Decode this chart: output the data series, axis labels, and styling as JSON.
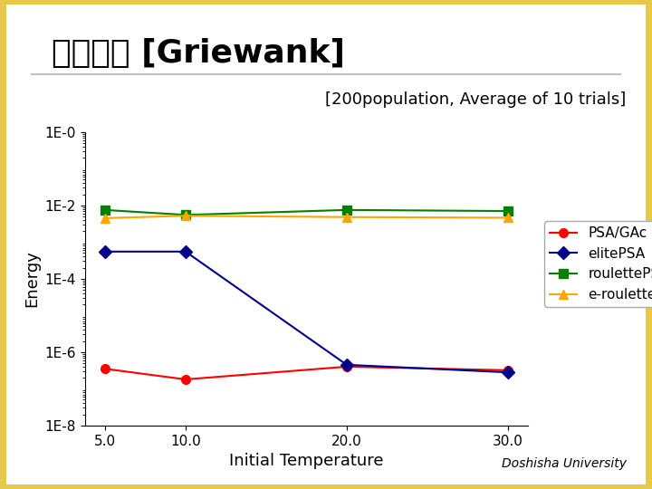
{
  "title": "実験結果 [Griewank]",
  "subtitle": "[200population, Average of 10 trials]",
  "xlabel": "Initial Temperature",
  "ylabel": "Energy",
  "x_values": [
    5.0,
    10.0,
    20.0,
    30.0
  ],
  "series": [
    {
      "label": "PSA/GAc",
      "color": "#ff0000",
      "marker": "o",
      "markersize": 7,
      "values": [
        3.5e-07,
        1.8e-07,
        4e-07,
        3.2e-07
      ]
    },
    {
      "label": "elitePSA",
      "color": "#00008b",
      "marker": "D",
      "markersize": 7,
      "values": [
        0.00055,
        0.00055,
        4.5e-07,
        2.8e-07
      ]
    },
    {
      "label": "roulettePSA",
      "color": "#008000",
      "marker": "s",
      "markersize": 7,
      "values": [
        0.0075,
        0.0055,
        0.0075,
        0.007
      ]
    },
    {
      "label": "e-roulettePSA",
      "color": "#ffa500",
      "marker": "^",
      "markersize": 7,
      "values": [
        0.0045,
        0.0052,
        0.0048,
        0.0046
      ]
    }
  ],
  "ylim": [
    1e-08,
    1.0
  ],
  "yticks": [
    1e-08,
    1e-06,
    0.0001,
    0.01,
    1.0
  ],
  "ytick_labels": [
    "1E-8",
    "1E-6",
    "1E-4",
    "1E-2",
    "1E-0"
  ],
  "background_color": "#ffffff",
  "border_color": "#e8c84a",
  "title_fontsize": 26,
  "subtitle_fontsize": 13,
  "axis_label_fontsize": 13,
  "tick_fontsize": 11,
  "legend_fontsize": 11
}
